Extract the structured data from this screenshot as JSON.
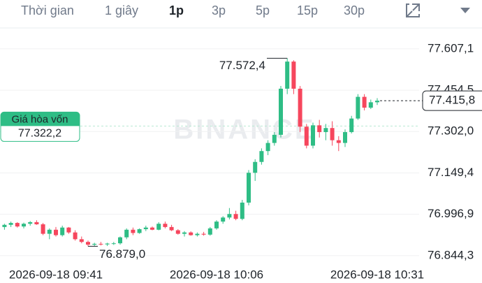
{
  "toolbar": {
    "items": [
      "Thời gian",
      "1 giây",
      "1p",
      "3p",
      "5p",
      "15p",
      "30p"
    ],
    "selected": 2
  },
  "chart_data": {
    "type": "candlestick",
    "watermark": "BINANCE",
    "x": [
      null,
      null,
      null,
      null,
      null,
      null,
      null,
      null,
      "2026-09-18 09:41",
      null,
      null,
      null,
      null,
      null,
      null,
      null,
      null,
      null,
      null,
      null,
      null,
      null,
      null,
      null,
      null,
      null,
      null,
      null,
      null,
      null,
      null,
      null,
      null,
      "2026-09-18 10:06",
      null,
      null,
      null,
      null,
      null,
      null,
      null,
      null,
      null,
      null,
      null,
      null,
      null,
      null,
      null,
      null,
      null,
      null,
      null,
      null,
      null,
      null,
      null,
      null,
      "2026-09-18 10:31"
    ],
    "open": [
      76950,
      76958,
      76965,
      76952,
      76962,
      76968,
      76960,
      76925,
      76940,
      76920,
      76948,
      76930,
      76905,
      76895,
      76885,
      76888,
      76886,
      76889,
      76890,
      76912,
      76940,
      76928,
      76942,
      76948,
      76940,
      76962,
      76950,
      76938,
      76925,
      76930,
      76920,
      76925,
      76922,
      76945,
      76970,
      76985,
      76998,
      76980,
      77040,
      77150,
      77190,
      77230,
      77260,
      77290,
      77460,
      77560,
      77460,
      77320,
      77250,
      77325,
      77300,
      77315,
      77270,
      77260,
      77300,
      77350,
      77430,
      77390,
      77410
    ],
    "high": [
      76962,
      76970,
      76968,
      76966,
      76972,
      76975,
      76965,
      76945,
      76950,
      76955,
      76950,
      76938,
      76915,
      76900,
      76892,
      76895,
      76892,
      76895,
      76915,
      76945,
      76948,
      76945,
      76955,
      76952,
      76968,
      76970,
      76958,
      76942,
      76935,
      76934,
      76930,
      76932,
      76950,
      76975,
      76990,
      77020,
      77010,
      77050,
      77160,
      77200,
      77240,
      77270,
      77300,
      77470,
      77572.4,
      77565,
      77470,
      77330,
      77335,
      77345,
      77330,
      77340,
      77285,
      77310,
      77360,
      77440,
      77440,
      77420,
      77425
    ],
    "low": [
      76940,
      76950,
      76948,
      76945,
      76955,
      76958,
      76920,
      76905,
      76915,
      76915,
      76925,
      76900,
      76890,
      76879,
      76880,
      76882,
      76880,
      76884,
      76885,
      76905,
      76920,
      76925,
      76935,
      76938,
      76938,
      76945,
      76935,
      76922,
      76915,
      76918,
      76915,
      76918,
      76918,
      76940,
      76962,
      76978,
      76975,
      76975,
      77030,
      77120,
      77180,
      77215,
      77250,
      77280,
      77440,
      77440,
      77300,
      77240,
      77240,
      77280,
      77270,
      77250,
      77230,
      77245,
      77295,
      77345,
      77380,
      77385,
      77400
    ],
    "close": [
      76958,
      76965,
      76952,
      76962,
      76968,
      76960,
      76925,
      76940,
      76920,
      76948,
      76930,
      76905,
      76895,
      76885,
      76888,
      76886,
      76889,
      76890,
      76912,
      76940,
      76928,
      76942,
      76948,
      76940,
      76962,
      76950,
      76938,
      76925,
      76930,
      76920,
      76925,
      76922,
      76945,
      76970,
      76985,
      76998,
      76980,
      77040,
      77150,
      77190,
      77230,
      77260,
      77290,
      77460,
      77560,
      77460,
      77320,
      77250,
      77325,
      77300,
      77315,
      77270,
      77260,
      77300,
      77350,
      77430,
      77390,
      77410,
      77415.8
    ],
    "up_color": "#2ebd85",
    "down_color": "#f6465d",
    "ylim": [
      76808,
      77684
    ],
    "yticks": [
      {
        "value": 77607.1,
        "label": "77.607,1"
      },
      {
        "value": 77454.5,
        "label": "77.454,5"
      },
      {
        "value": 77302.0,
        "label": "77.302,0"
      },
      {
        "value": 77149.4,
        "label": "77.149,4"
      },
      {
        "value": 76996.9,
        "label": "76.996,9"
      },
      {
        "value": 76844.3,
        "label": "76.844,3"
      }
    ],
    "grid": true,
    "high_marker": {
      "value": 77572.4,
      "label": "77.572,4"
    },
    "low_marker": {
      "value": 76879.0,
      "label": "76.879,0"
    },
    "last_price": {
      "value": 77415.8,
      "label": "77.415,8"
    },
    "break_even": {
      "title": "Giá hòa vốn",
      "value": 77322.2,
      "label": "77.322,2"
    }
  }
}
